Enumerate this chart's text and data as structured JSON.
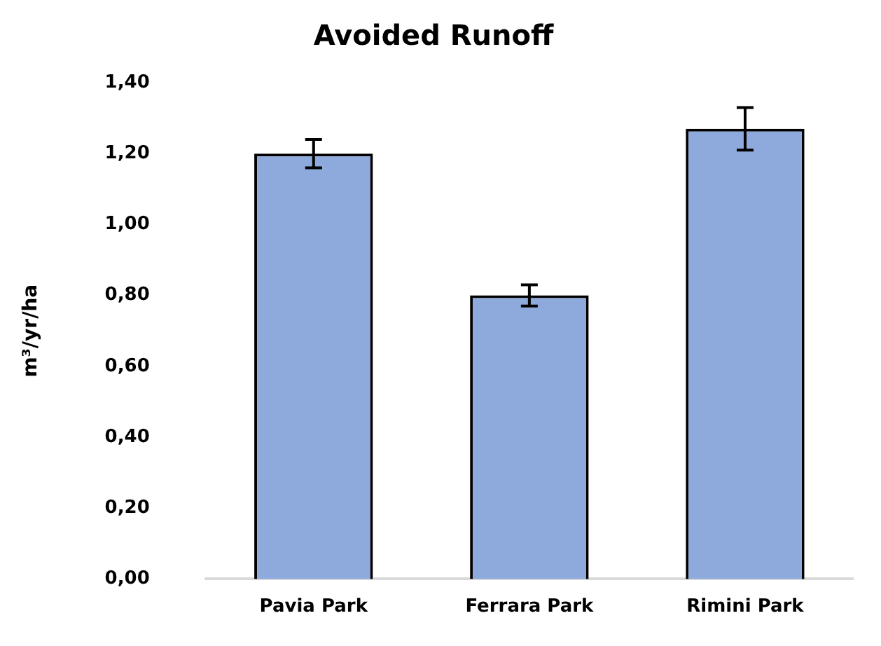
{
  "chart_data": {
    "type": "bar",
    "title": "Avoided Runoff",
    "ylabel": "m³/yr/ha",
    "categories": [
      "Pavia Park",
      "Ferrara Park",
      "Rimini Park"
    ],
    "values": [
      1.2,
      0.8,
      1.27
    ],
    "color": "#8eaadc",
    "errors": [
      0.04,
      0.03,
      0.06
    ],
    "ylim": [
      0,
      1.4
    ],
    "yticks": [
      {
        "value": 0,
        "label": "0,00"
      },
      {
        "value": 0.2,
        "label": "0,20"
      },
      {
        "value": 0.4,
        "label": "0,40"
      },
      {
        "value": 0.6,
        "label": "0,60"
      },
      {
        "value": 0.8,
        "label": "0,80"
      },
      {
        "value": 1.0,
        "label": "1,00"
      },
      {
        "value": 1.2,
        "label": "1,20"
      },
      {
        "value": 1.4,
        "label": "1,40"
      }
    ],
    "grid": false,
    "legend": false
  }
}
